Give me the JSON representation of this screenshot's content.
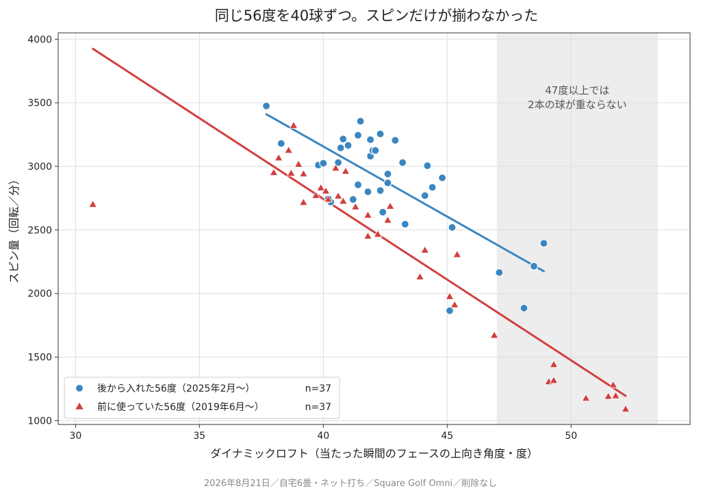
{
  "chart_data": {
    "type": "scatter",
    "title": "同じ56度を40球ずつ。スピンだけが揃わなかった",
    "xlabel": "ダイナミックロフト（当たった瞬間のフェースの上向き角度・度）",
    "ylabel": "スピン量（回転／分）",
    "xlim": [
      29.3,
      54.8
    ],
    "ylim": [
      970,
      4050
    ],
    "xticks": [
      30,
      35,
      40,
      45,
      50
    ],
    "yticks": [
      1000,
      1500,
      2000,
      2500,
      3000,
      3500,
      4000
    ],
    "grid": true,
    "legend_position": "lower-left",
    "shaded_region": {
      "x_range": [
        47,
        53.5
      ],
      "annotation_line1": "47度以上では",
      "annotation_line2": "2本の球が重ならない"
    },
    "footer": "2026年8月21日／自宅6畳・ネット打ち／Square Golf Omni／削除なし",
    "series": [
      {
        "name": "後から入れた56度（2025年2月〜）",
        "count_label": "n=37",
        "marker": "circle",
        "color": "#3a86c1",
        "fit_line": [
          [
            37.7,
            3410
          ],
          [
            48.9,
            2175
          ]
        ],
        "points": [
          [
            37.7,
            3475
          ],
          [
            38.3,
            3180
          ],
          [
            39.8,
            3010
          ],
          [
            40.0,
            3025
          ],
          [
            40.3,
            2720
          ],
          [
            40.6,
            3030
          ],
          [
            40.7,
            3145
          ],
          [
            40.8,
            3215
          ],
          [
            41.0,
            3165
          ],
          [
            41.2,
            2740
          ],
          [
            41.4,
            2855
          ],
          [
            41.4,
            3245
          ],
          [
            41.5,
            3355
          ],
          [
            41.8,
            2800
          ],
          [
            41.9,
            3080
          ],
          [
            41.9,
            3210
          ],
          [
            42.0,
            3125
          ],
          [
            42.1,
            3125
          ],
          [
            42.3,
            2810
          ],
          [
            42.3,
            3255
          ],
          [
            42.4,
            2640
          ],
          [
            42.6,
            2940
          ],
          [
            42.6,
            2870
          ],
          [
            42.9,
            3205
          ],
          [
            43.2,
            3030
          ],
          [
            43.3,
            2545
          ],
          [
            44.1,
            2770
          ],
          [
            44.2,
            3005
          ],
          [
            44.4,
            2835
          ],
          [
            44.8,
            2910
          ],
          [
            45.1,
            1865
          ],
          [
            45.2,
            2520
          ],
          [
            47.1,
            2165
          ],
          [
            48.1,
            1885
          ],
          [
            48.5,
            2215
          ],
          [
            48.9,
            2395
          ],
          [
            40.2,
            2745
          ]
        ]
      },
      {
        "name": "前に使っていた56度（2019年6月〜）",
        "count_label": "n=37",
        "marker": "triangle",
        "color": "#d23f3f",
        "fit_line": [
          [
            30.7,
            3925
          ],
          [
            52.2,
            1195
          ]
        ],
        "points": [
          [
            30.7,
            2700
          ],
          [
            38.0,
            2950
          ],
          [
            38.2,
            3065
          ],
          [
            38.6,
            3125
          ],
          [
            38.7,
            2945
          ],
          [
            38.8,
            3320
          ],
          [
            39.0,
            3015
          ],
          [
            39.2,
            2715
          ],
          [
            39.2,
            2940
          ],
          [
            39.7,
            2770
          ],
          [
            39.9,
            2830
          ],
          [
            40.1,
            2805
          ],
          [
            40.2,
            2740
          ],
          [
            40.5,
            2985
          ],
          [
            40.6,
            2765
          ],
          [
            40.8,
            2725
          ],
          [
            40.9,
            2960
          ],
          [
            41.3,
            2680
          ],
          [
            41.8,
            2450
          ],
          [
            41.8,
            2615
          ],
          [
            42.2,
            2465
          ],
          [
            42.6,
            2575
          ],
          [
            42.7,
            2685
          ],
          [
            43.9,
            2130
          ],
          [
            44.1,
            2340
          ],
          [
            45.1,
            1975
          ],
          [
            45.3,
            1910
          ],
          [
            45.4,
            2305
          ],
          [
            46.9,
            1670
          ],
          [
            49.1,
            1305
          ],
          [
            49.3,
            1315
          ],
          [
            49.3,
            1440
          ],
          [
            50.6,
            1175
          ],
          [
            51.5,
            1190
          ],
          [
            51.7,
            1280
          ],
          [
            51.8,
            1195
          ],
          [
            52.2,
            1090
          ]
        ]
      }
    ]
  }
}
